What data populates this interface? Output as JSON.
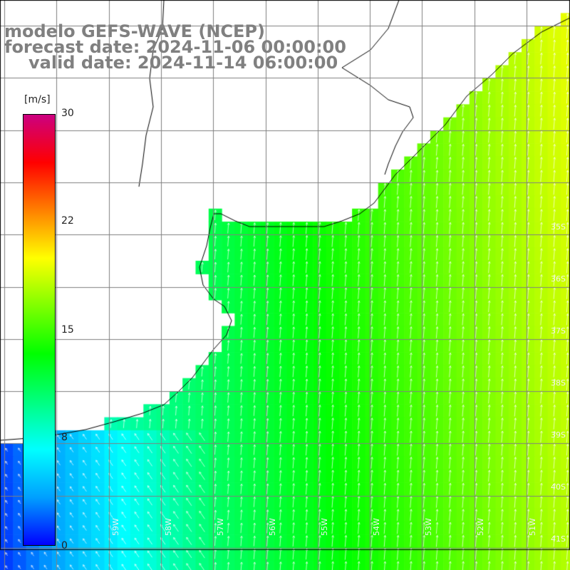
{
  "title": {
    "line1": "modelo GEFS-WAVE (NCEP)",
    "line2": "forecast date: 2024-11-06 00:00:00",
    "line3": "valid date: 2024-11-14 06:00:00"
  },
  "colorbar": {
    "unit": "[m/s]",
    "range": [
      0,
      30
    ],
    "ticks": [
      "30",
      "22",
      "15",
      "8",
      "0"
    ],
    "tick_values": [
      30,
      22,
      15,
      8,
      0
    ],
    "colors": [
      "#0000ff",
      "#00a0ff",
      "#00ffff",
      "#00ff7f",
      "#00ff00",
      "#7fff00",
      "#ffff00",
      "#ff8000",
      "#ff0000",
      "#cc0080"
    ]
  },
  "map": {
    "lat_labels": [
      "35S",
      "36S",
      "37S",
      "38S",
      "39S",
      "40S",
      "41S"
    ],
    "lon_labels": [
      "59W",
      "58W",
      "57W",
      "56W",
      "55W",
      "54W",
      "53W",
      "52W",
      "51W"
    ],
    "wind_direction": "southerly",
    "land_color": "#ffffff",
    "grid_color": "#808080"
  }
}
